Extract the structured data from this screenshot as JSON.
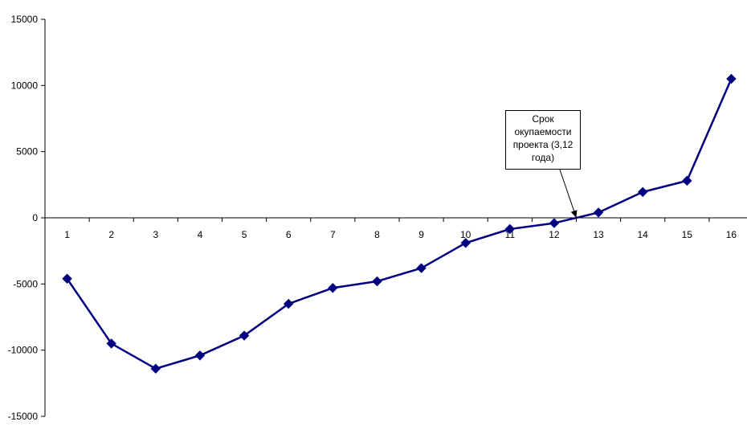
{
  "chart_data": {
    "type": "line",
    "title": "",
    "xlabel": "",
    "ylabel": "",
    "categories": [
      "1",
      "2",
      "3",
      "4",
      "5",
      "6",
      "7",
      "8",
      "9",
      "10",
      "11",
      "12",
      "13",
      "14",
      "15",
      "16"
    ],
    "series": [
      {
        "values": [
          -4600,
          -9500,
          -11400,
          -10400,
          -8900,
          -6500,
          -5300,
          -4800,
          -3800,
          -1900,
          -850,
          -400,
          400,
          1950,
          2800,
          10500
        ],
        "color": "#000080",
        "marker": "diamond"
      }
    ],
    "ylim": [
      -15000,
      15000
    ],
    "yticks": [
      "15000",
      "10000",
      "5000",
      "0",
      "-5000",
      "-10000",
      "-15000"
    ],
    "grid": false,
    "legend": "none",
    "annotation": {
      "text": "Срок\nокупаемости\nпроекта (3,12\nгода)",
      "points_to_x": 12.5
    }
  }
}
